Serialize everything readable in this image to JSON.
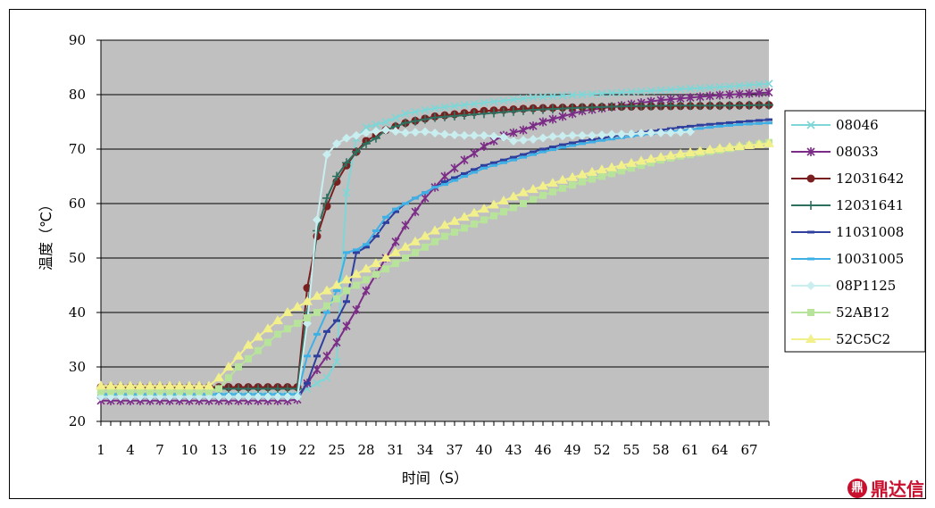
{
  "chart_data": {
    "type": "line",
    "title": "",
    "xlabel": "时间（S）",
    "ylabel": "温度（℃）",
    "ylim": [
      20,
      90
    ],
    "yticks": [
      20,
      30,
      40,
      50,
      60,
      70,
      80,
      90
    ],
    "xlim": [
      1,
      69
    ],
    "xticks": [
      1,
      4,
      7,
      10,
      13,
      16,
      19,
      22,
      25,
      28,
      31,
      34,
      37,
      40,
      43,
      46,
      49,
      52,
      55,
      58,
      61,
      64,
      67
    ],
    "grid": "horizontal",
    "legend_position": "right",
    "plot_background": "#C0C0C0",
    "series": [
      {
        "name": "08046",
        "color": "#7FD6D6",
        "marker": "x",
        "points": [
          [
            1,
            24.8
          ],
          [
            5,
            24.8
          ],
          [
            10,
            24.8
          ],
          [
            15,
            24.8
          ],
          [
            20,
            24.8
          ],
          [
            21,
            24.8
          ],
          [
            22,
            26
          ],
          [
            23,
            27
          ],
          [
            24,
            28
          ],
          [
            25,
            31
          ],
          [
            26,
            62
          ],
          [
            27,
            72
          ],
          [
            28,
            74
          ],
          [
            30,
            75
          ],
          [
            32,
            76.5
          ],
          [
            35,
            77.5
          ],
          [
            40,
            78.5
          ],
          [
            45,
            79.5
          ],
          [
            50,
            80
          ],
          [
            55,
            80.5
          ],
          [
            60,
            81
          ],
          [
            65,
            81.5
          ],
          [
            69,
            82
          ]
        ]
      },
      {
        "name": "08033",
        "color": "#7B2C86",
        "marker": "asterisk",
        "points": [
          [
            1,
            23.8
          ],
          [
            5,
            23.8
          ],
          [
            10,
            23.8
          ],
          [
            15,
            23.8
          ],
          [
            20,
            23.8
          ],
          [
            21,
            24
          ],
          [
            22,
            27
          ],
          [
            23,
            29.5
          ],
          [
            24,
            32
          ],
          [
            25,
            34.5
          ],
          [
            26,
            37.5
          ],
          [
            27,
            40.5
          ],
          [
            28,
            44
          ],
          [
            29,
            47
          ],
          [
            30,
            50
          ],
          [
            31,
            53
          ],
          [
            32,
            56
          ],
          [
            33,
            58.5
          ],
          [
            34,
            61
          ],
          [
            35,
            63
          ],
          [
            36,
            65
          ],
          [
            38,
            68
          ],
          [
            40,
            70.5
          ],
          [
            42,
            72.5
          ],
          [
            44,
            73.5
          ],
          [
            46,
            75
          ],
          [
            48,
            76
          ],
          [
            50,
            77
          ],
          [
            52,
            77.5
          ],
          [
            54,
            78
          ],
          [
            56,
            78.5
          ],
          [
            58,
            79
          ],
          [
            60,
            79.3
          ],
          [
            62,
            79.6
          ],
          [
            64,
            79.9
          ],
          [
            66,
            80.1
          ],
          [
            69,
            80.4
          ]
        ]
      },
      {
        "name": "12031642",
        "color": "#7A1F1F",
        "marker": "circle",
        "points": [
          [
            1,
            26.3
          ],
          [
            5,
            26.3
          ],
          [
            10,
            26.3
          ],
          [
            15,
            26.3
          ],
          [
            20,
            26.3
          ],
          [
            21,
            26.3
          ],
          [
            22,
            44.5
          ],
          [
            23,
            54
          ],
          [
            24,
            59.5
          ],
          [
            25,
            64
          ],
          [
            26,
            67
          ],
          [
            27,
            69.5
          ],
          [
            28,
            71.5
          ],
          [
            29,
            72.5
          ],
          [
            30,
            73.5
          ],
          [
            32,
            74.8
          ],
          [
            35,
            76
          ],
          [
            40,
            77
          ],
          [
            45,
            77.5
          ],
          [
            50,
            77.7
          ],
          [
            55,
            77.8
          ],
          [
            60,
            77.9
          ],
          [
            65,
            78
          ],
          [
            69,
            78.1
          ]
        ]
      },
      {
        "name": "12031641",
        "color": "#2E7060",
        "marker": "plus",
        "points": [
          [
            1,
            26
          ],
          [
            5,
            26
          ],
          [
            10,
            26
          ],
          [
            15,
            26
          ],
          [
            20,
            26
          ],
          [
            21,
            26
          ],
          [
            22,
            40
          ],
          [
            23,
            55
          ],
          [
            24,
            61
          ],
          [
            25,
            65
          ],
          [
            26,
            67.5
          ],
          [
            27,
            69.5
          ],
          [
            28,
            71
          ],
          [
            29,
            72
          ],
          [
            30,
            73.5
          ],
          [
            32,
            74.8
          ],
          [
            35,
            75.8
          ],
          [
            40,
            76.5
          ],
          [
            45,
            77.2
          ],
          [
            50,
            77.6
          ],
          [
            55,
            77.9
          ],
          [
            60,
            78
          ],
          [
            65,
            78
          ],
          [
            69,
            78.1
          ]
        ]
      },
      {
        "name": "11031008",
        "color": "#2F3F9E",
        "marker": "dash",
        "points": [
          [
            1,
            24.5
          ],
          [
            5,
            24.5
          ],
          [
            10,
            24.5
          ],
          [
            15,
            24.5
          ],
          [
            20,
            24.5
          ],
          [
            21,
            24.5
          ],
          [
            22,
            27
          ],
          [
            23,
            32
          ],
          [
            24,
            36.5
          ],
          [
            25,
            38.5
          ],
          [
            26,
            42
          ],
          [
            27,
            51
          ],
          [
            28,
            52
          ],
          [
            29,
            54
          ],
          [
            30,
            56.5
          ],
          [
            31,
            58.5
          ],
          [
            32,
            60
          ],
          [
            33,
            61
          ],
          [
            34,
            62
          ],
          [
            35,
            63
          ],
          [
            36,
            64
          ],
          [
            38,
            65.5
          ],
          [
            40,
            67
          ],
          [
            42,
            68
          ],
          [
            44,
            69
          ],
          [
            46,
            70
          ],
          [
            48,
            70.8
          ],
          [
            50,
            71.5
          ],
          [
            52,
            72
          ],
          [
            54,
            72.6
          ],
          [
            56,
            73.1
          ],
          [
            58,
            73.5
          ],
          [
            60,
            74
          ],
          [
            62,
            74.4
          ],
          [
            64,
            74.7
          ],
          [
            66,
            75
          ],
          [
            69,
            75.4
          ]
        ]
      },
      {
        "name": "10031005",
        "color": "#3FB0E5",
        "marker": "dash",
        "points": [
          [
            1,
            25
          ],
          [
            5,
            25
          ],
          [
            10,
            25
          ],
          [
            15,
            25
          ],
          [
            20,
            25
          ],
          [
            21,
            25
          ],
          [
            22,
            32
          ],
          [
            23,
            36
          ],
          [
            24,
            40
          ],
          [
            25,
            44
          ],
          [
            26,
            51
          ],
          [
            27,
            51.5
          ],
          [
            28,
            52.5
          ],
          [
            29,
            55
          ],
          [
            30,
            57.5
          ],
          [
            31,
            59
          ],
          [
            32,
            60
          ],
          [
            33,
            61
          ],
          [
            34,
            62
          ],
          [
            35,
            63
          ],
          [
            36,
            63.5
          ],
          [
            38,
            65
          ],
          [
            40,
            66.5
          ],
          [
            42,
            67.5
          ],
          [
            44,
            68.5
          ],
          [
            46,
            69.5
          ],
          [
            48,
            70.3
          ],
          [
            50,
            71
          ],
          [
            52,
            71.6
          ],
          [
            54,
            72.1
          ],
          [
            56,
            72.6
          ],
          [
            58,
            73
          ],
          [
            60,
            73.4
          ],
          [
            62,
            73.8
          ],
          [
            64,
            74.2
          ],
          [
            66,
            74.5
          ],
          [
            69,
            74.8
          ]
        ]
      },
      {
        "name": "08P1125",
        "color": "#C9EEF0",
        "marker": "diamond",
        "points": [
          [
            1,
            24.5
          ],
          [
            5,
            24.5
          ],
          [
            10,
            24.5
          ],
          [
            15,
            24.5
          ],
          [
            20,
            24.5
          ],
          [
            21,
            24.5
          ],
          [
            22,
            38
          ],
          [
            23,
            57
          ],
          [
            24,
            69
          ],
          [
            25,
            71
          ],
          [
            26,
            72
          ],
          [
            28,
            73
          ],
          [
            30,
            73.5
          ],
          [
            32,
            73
          ],
          [
            34,
            73.2
          ],
          [
            36,
            72.7
          ],
          [
            38,
            72.5
          ],
          [
            40,
            72.5
          ],
          [
            42,
            72.2
          ],
          [
            43,
            71.5
          ],
          [
            45,
            71.8
          ],
          [
            47,
            72.3
          ],
          [
            49,
            72.5
          ],
          [
            51,
            72.5
          ],
          [
            53,
            72.7
          ],
          [
            55,
            72.8
          ],
          [
            57,
            73
          ],
          [
            59,
            73
          ],
          [
            61,
            73.2
          ]
        ]
      },
      {
        "name": "52AB12",
        "color": "#B8E39A",
        "marker": "square",
        "points": [
          [
            1,
            25.5
          ],
          [
            5,
            25.5
          ],
          [
            10,
            25.5
          ],
          [
            12,
            25.5
          ],
          [
            13,
            26
          ],
          [
            14,
            28
          ],
          [
            15,
            30
          ],
          [
            16,
            31.5
          ],
          [
            17,
            33
          ],
          [
            18,
            34.5
          ],
          [
            19,
            36
          ],
          [
            20,
            37
          ],
          [
            21,
            38
          ],
          [
            22,
            39
          ],
          [
            23,
            40
          ],
          [
            24,
            41.2
          ],
          [
            25,
            42.5
          ],
          [
            26,
            44
          ],
          [
            27,
            45
          ],
          [
            28,
            46
          ],
          [
            29,
            47
          ],
          [
            30,
            48
          ],
          [
            31,
            49
          ],
          [
            32,
            50
          ],
          [
            33,
            51
          ],
          [
            34,
            52
          ],
          [
            35,
            53
          ],
          [
            36,
            54
          ],
          [
            38,
            55.5
          ],
          [
            40,
            57
          ],
          [
            42,
            58.5
          ],
          [
            44,
            60
          ],
          [
            46,
            61.5
          ],
          [
            48,
            62.8
          ],
          [
            50,
            64
          ],
          [
            52,
            65
          ],
          [
            54,
            66
          ],
          [
            56,
            67
          ],
          [
            58,
            68
          ],
          [
            60,
            68.7
          ],
          [
            62,
            69.3
          ],
          [
            64,
            69.8
          ],
          [
            66,
            70.4
          ],
          [
            69,
            71.2
          ]
        ]
      },
      {
        "name": "52C5C2",
        "color": "#F2F08A",
        "marker": "triangle",
        "points": [
          [
            1,
            26.5
          ],
          [
            5,
            26.5
          ],
          [
            10,
            26.5
          ],
          [
            12,
            26.5
          ],
          [
            13,
            28
          ],
          [
            14,
            30
          ],
          [
            15,
            32
          ],
          [
            16,
            34
          ],
          [
            17,
            35.5
          ],
          [
            18,
            37
          ],
          [
            19,
            38.5
          ],
          [
            20,
            40
          ],
          [
            21,
            41
          ],
          [
            22,
            42
          ],
          [
            23,
            43
          ],
          [
            24,
            44
          ],
          [
            25,
            45
          ],
          [
            26,
            46
          ],
          [
            27,
            47
          ],
          [
            28,
            48
          ],
          [
            29,
            49
          ],
          [
            30,
            50
          ],
          [
            31,
            51
          ],
          [
            32,
            52
          ],
          [
            33,
            53
          ],
          [
            34,
            54
          ],
          [
            35,
            55
          ],
          [
            36,
            56
          ],
          [
            38,
            57.5
          ],
          [
            40,
            59
          ],
          [
            42,
            60.5
          ],
          [
            44,
            62
          ],
          [
            46,
            63.2
          ],
          [
            48,
            64.3
          ],
          [
            50,
            65.3
          ],
          [
            52,
            66.2
          ],
          [
            54,
            67
          ],
          [
            56,
            67.8
          ],
          [
            58,
            68.5
          ],
          [
            60,
            69.1
          ],
          [
            62,
            69.6
          ],
          [
            64,
            70.1
          ],
          [
            66,
            70.5
          ],
          [
            69,
            71
          ]
        ]
      }
    ]
  },
  "watermark": {
    "logo_glyph": "鼎",
    "text": "鼎达信"
  }
}
